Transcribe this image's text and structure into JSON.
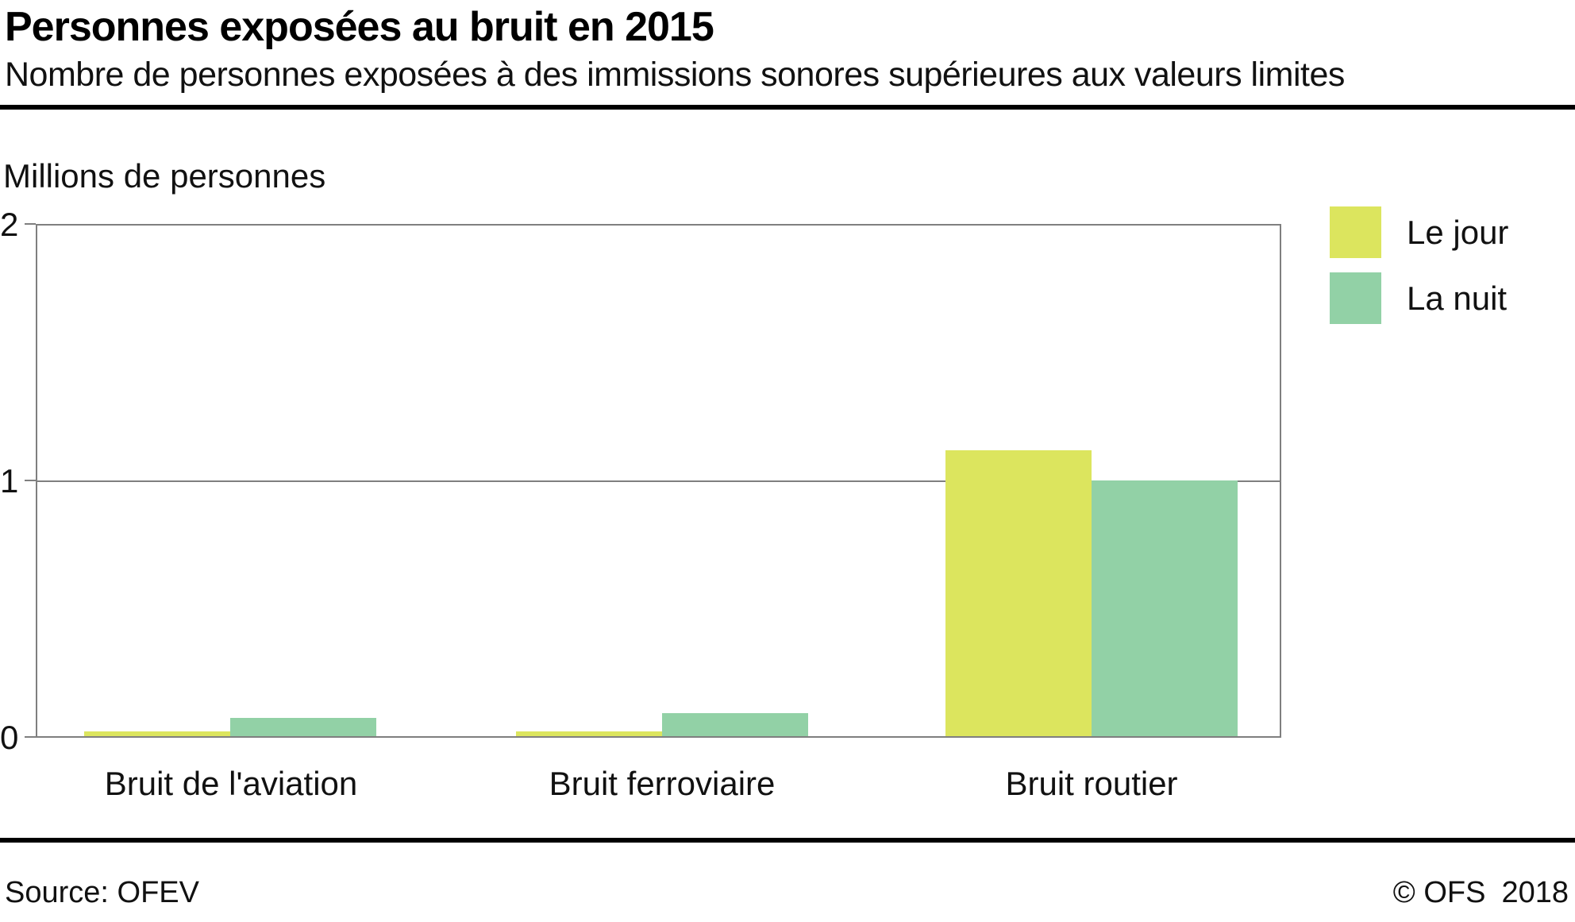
{
  "header": {
    "title": "Personnes exposées au bruit en 2015",
    "subtitle": "Nombre de personnes exposées à des immissions sonores supérieures aux valeurs limites"
  },
  "chart_data": {
    "type": "bar",
    "title": "Personnes exposées au bruit en 2015",
    "subtitle": "Nombre de personnes exposées à des immissions sonores supérieures aux valeurs limites",
    "ylabel": "Millions de personnes",
    "xlabel": "",
    "categories": [
      "Bruit de l'aviation",
      "Bruit ferroviaire",
      "Bruit routier"
    ],
    "series": [
      {
        "name": "Le jour",
        "color": "#dce55e",
        "values": [
          0.02,
          0.02,
          1.12
        ]
      },
      {
        "name": "La nuit",
        "color": "#92d1a6",
        "values": [
          0.07,
          0.09,
          1.0
        ]
      }
    ],
    "ylim": [
      0,
      2
    ],
    "yticks": [
      0,
      1,
      2
    ],
    "grid": "horizontal gridline at y=1 only, plot framed with gray border",
    "legend_position": "top-right outside plot"
  },
  "axis": {
    "unit_label": "Millions de personnes",
    "ticks_top_to_bottom": [
      "2",
      "1",
      "0"
    ]
  },
  "legend": {
    "items": [
      {
        "label": "Le jour",
        "color": "#dce55e"
      },
      {
        "label": "La nuit",
        "color": "#92d1a6"
      }
    ]
  },
  "footer": {
    "source": "Source: OFEV",
    "copyright": "© OFS",
    "year": "2018"
  },
  "colors": {
    "series_day": "#dce55e",
    "series_night": "#92d1a6",
    "axis_gray": "#7f7f7f",
    "rule_black": "#000000"
  }
}
